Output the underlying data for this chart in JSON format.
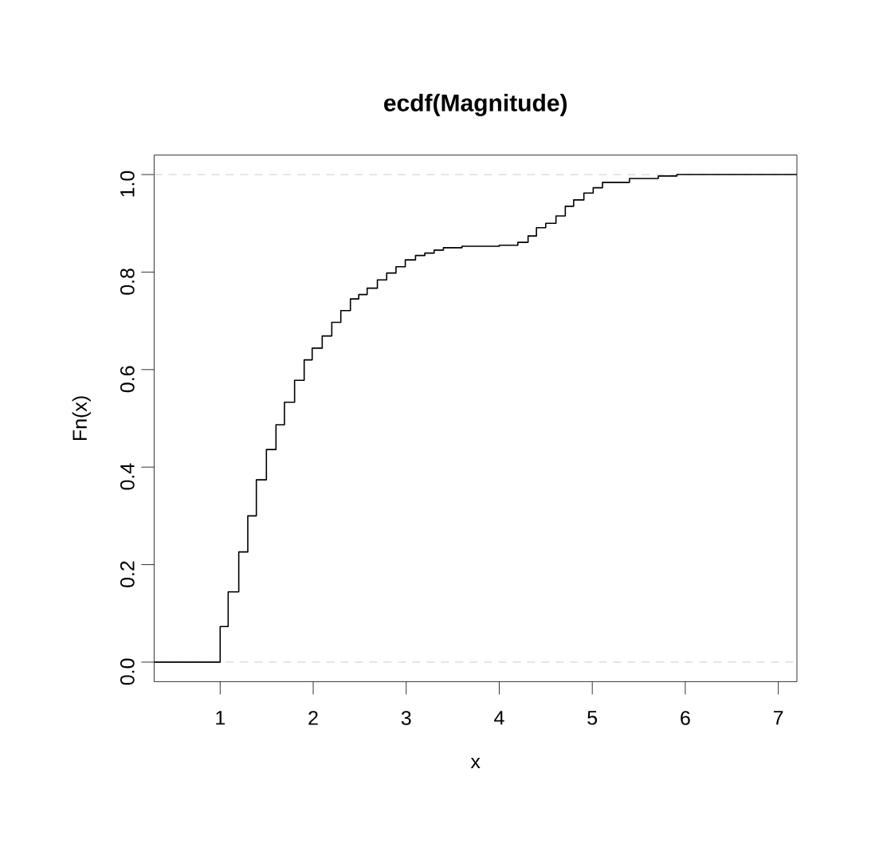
{
  "chart_data": {
    "type": "step",
    "title": "ecdf(Magnitude)",
    "xlabel": "x",
    "ylabel": "Fn(x)",
    "x": [
      0.29,
      1.0,
      1.086,
      1.2,
      1.297,
      1.389,
      1.497,
      1.6,
      1.691,
      1.8,
      1.903,
      1.989,
      2.097,
      2.2,
      2.297,
      2.4,
      2.49,
      2.58,
      2.69,
      2.79,
      2.89,
      2.99,
      3.1,
      3.2,
      3.3,
      3.4,
      3.6,
      4.0,
      4.2,
      4.31,
      4.4,
      4.5,
      4.61,
      4.71,
      4.8,
      4.91,
      5.01,
      5.11,
      5.4,
      5.71,
      5.91,
      7.2
    ],
    "values": [
      0,
      0.073,
      0.144,
      0.226,
      0.3,
      0.374,
      0.436,
      0.487,
      0.533,
      0.578,
      0.62,
      0.644,
      0.669,
      0.697,
      0.721,
      0.745,
      0.754,
      0.767,
      0.784,
      0.798,
      0.811,
      0.825,
      0.834,
      0.839,
      0.845,
      0.85,
      0.853,
      0.855,
      0.861,
      0.874,
      0.891,
      0.9,
      0.915,
      0.935,
      0.948,
      0.962,
      0.973,
      0.984,
      0.992,
      0.997,
      1.0,
      1.0
    ],
    "color": "#000000",
    "marker": "none",
    "line_style": "solid",
    "xlim": [
      0.29,
      7.2
    ],
    "ylim": [
      -0.04,
      1.04
    ],
    "xticks": [
      1,
      2,
      3,
      4,
      5,
      6,
      7
    ],
    "yticks": [
      {
        "value": 0,
        "label": "0.0"
      },
      {
        "value": 0.2,
        "label": "0.2"
      },
      {
        "value": 0.4,
        "label": "0.4"
      },
      {
        "value": 0.6,
        "label": "0.6"
      },
      {
        "value": 0.8,
        "label": "0.8"
      },
      {
        "value": 1,
        "label": "1.0"
      }
    ],
    "ref_lines": [
      {
        "axis": "y",
        "value": 0,
        "color": "#bebebe",
        "line_style": "dashed"
      },
      {
        "axis": "y",
        "value": 1,
        "color": "#bebebe",
        "line_style": "dashed"
      }
    ]
  }
}
